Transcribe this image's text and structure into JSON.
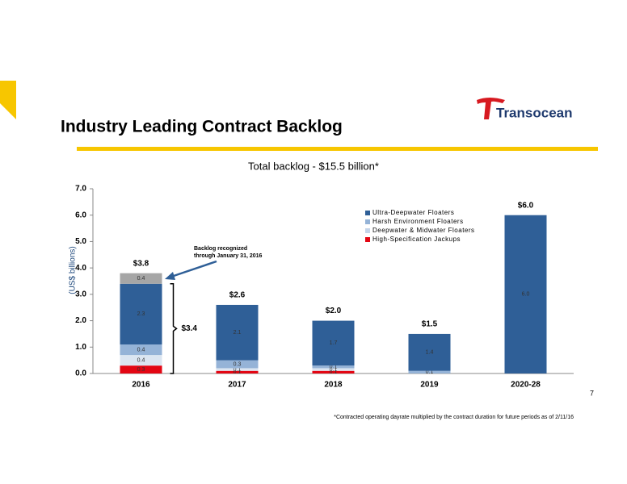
{
  "slide": {
    "title": "Industry Leading Contract Backlog",
    "logo": "Transocean",
    "page_number": "7",
    "footnote": "*Contracted operating dayrate multiplied by the contract duration for future periods as of 2/11/16"
  },
  "chart_data": {
    "type": "stacked-bar",
    "title": "Total backlog - $15.5 billion*",
    "y_label": "(US$ billions)",
    "categories": [
      "2016",
      "2017",
      "2018",
      "2019",
      "2020-28"
    ],
    "series": [
      {
        "name": "High-Specification Jackups",
        "color": "#e30613",
        "values": [
          0.3,
          0.1,
          0.1,
          null,
          null
        ]
      },
      {
        "name": "Deepwater & Midwater Floaters",
        "color": "#dbe5f1",
        "values": [
          0.4,
          0.1,
          0.1,
          null,
          null
        ]
      },
      {
        "name": "Harsh Environment Floaters",
        "color": "#95b3d7",
        "values": [
          0.4,
          0.3,
          0.1,
          0.1,
          null
        ]
      },
      {
        "name": "Ultra-Deepwater Floaters",
        "color": "#2f5f97",
        "values": [
          2.3,
          2.1,
          1.7,
          1.4,
          6.0
        ],
        "value_labels": [
          "2.3",
          "2.1",
          "1.7",
          "1.4",
          "6.0"
        ]
      }
    ],
    "recognized": {
      "label_lines": [
        "Backlog recognized",
        "through January 31, 2016"
      ],
      "color": "#a6a6a6",
      "values": [
        0.4,
        null,
        null,
        null,
        null
      ]
    },
    "bracket": {
      "label": "$3.4",
      "value": 3.4
    },
    "totals": {
      "values": [
        3.8,
        2.6,
        2.0,
        1.5,
        6.0
      ],
      "value_labels": [
        "$3.8",
        "$2.6",
        "$2.0",
        "$1.5",
        "$6.0"
      ]
    },
    "ylim": [
      0,
      7
    ],
    "yticks": [
      {
        "value": 0,
        "label": "0.0"
      },
      {
        "value": 1,
        "label": "1.0"
      },
      {
        "value": 2,
        "label": "2.0"
      },
      {
        "value": 3,
        "label": "3.0"
      },
      {
        "value": 4,
        "label": "4.0"
      },
      {
        "value": 5,
        "label": "5.0"
      },
      {
        "value": 6,
        "label": "6.0"
      },
      {
        "value": 7,
        "label": "7.0"
      }
    ],
    "legend": "upper-right"
  }
}
